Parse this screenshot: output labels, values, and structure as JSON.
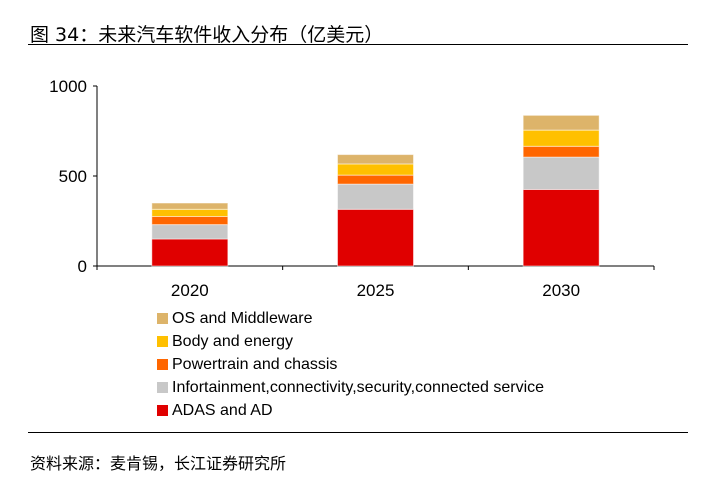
{
  "title": "图 34：未来汽车软件收入分布（亿美元）",
  "source": "资料来源：麦肯锡，长江证券研究所",
  "chart_data": {
    "type": "bar",
    "stacked": true,
    "categories": [
      "2020",
      "2025",
      "2030"
    ],
    "ylim": [
      0,
      1000
    ],
    "yticks": [
      0,
      500,
      1000
    ],
    "grid": false,
    "legend_placement": "bottom",
    "series": [
      {
        "name": "ADAS and AD",
        "color": "#E00000",
        "values": [
          150,
          315,
          425
        ]
      },
      {
        "name": "Infortainment,connectivity,security,connected service",
        "color": "#C8C8C8",
        "values": [
          80,
          140,
          180
        ]
      },
      {
        "name": "Powertrain and chassis",
        "color": "#FF6600",
        "values": [
          45,
          50,
          60
        ]
      },
      {
        "name": "Body and energy",
        "color": "#FFC000",
        "values": [
          40,
          62,
          90
        ]
      },
      {
        "name": "OS and Middleware",
        "color": "#DDB46A",
        "values": [
          35,
          52,
          82
        ]
      }
    ]
  }
}
